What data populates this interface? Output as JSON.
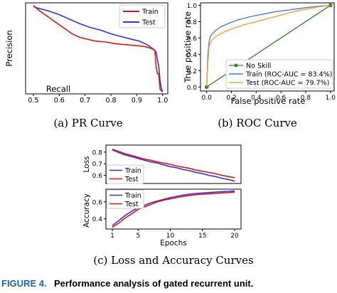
{
  "colors": {
    "train": "#3333dd",
    "test": "#e01515",
    "roc_train": "#4a7fd0",
    "roc_test": "#f2a13c",
    "no_skill": "#2a8a2a",
    "caption_label": "#1a63b8"
  },
  "captions": {
    "pr": "(a) PR Curve",
    "roc": "(b) ROC Curve",
    "loss_acc": "(c) Loss and Accuracy Curves"
  },
  "figure_caption": {
    "label": "FIGURE 4.",
    "text": "Performance analysis of gated recurrent unit."
  },
  "chart_data": [
    {
      "id": "pr",
      "type": "line",
      "title": "",
      "xlabel": "Recall",
      "ylabel": "Precision",
      "xlim": [
        0.47,
        1.02
      ],
      "ylim": [
        0.0,
        1.0
      ],
      "xticks": [
        "0.5",
        "0.6",
        "0.7",
        "0.8",
        "0.9",
        "1.0"
      ],
      "xtick_values": [
        0.5,
        0.6,
        0.7,
        0.8,
        0.9,
        1.0
      ],
      "yticks": [],
      "legend": "top-right",
      "series": [
        {
          "name": "Train",
          "color_key": "train",
          "x": [
            0.5,
            0.52,
            0.56,
            0.6,
            0.64,
            0.68,
            0.72,
            0.76,
            0.8,
            0.84,
            0.88,
            0.91,
            0.94,
            0.96,
            0.975,
            0.985,
            0.99,
            0.995,
            1.0
          ],
          "y": [
            0.96,
            0.94,
            0.91,
            0.87,
            0.82,
            0.77,
            0.73,
            0.7,
            0.66,
            0.63,
            0.6,
            0.58,
            0.54,
            0.5,
            0.46,
            0.3,
            0.15,
            0.06,
            0.02
          ]
        },
        {
          "name": "Test",
          "color_key": "test",
          "x": [
            0.5,
            0.52,
            0.55,
            0.58,
            0.61,
            0.63,
            0.65,
            0.68,
            0.71,
            0.74,
            0.78,
            0.82,
            0.86,
            0.9,
            0.93,
            0.955,
            0.97,
            0.975,
            0.98,
            0.985,
            0.99,
            1.0
          ],
          "y": [
            0.97,
            0.92,
            0.86,
            0.8,
            0.74,
            0.7,
            0.66,
            0.62,
            0.6,
            0.58,
            0.57,
            0.55,
            0.54,
            0.53,
            0.52,
            0.5,
            0.48,
            0.3,
            0.22,
            0.22,
            0.05,
            0.02
          ]
        }
      ]
    },
    {
      "id": "roc",
      "type": "line",
      "title": "",
      "xlabel": "False positive rate",
      "ylabel": "True positive rate",
      "xlim": [
        -0.05,
        1.03
      ],
      "ylim": [
        -0.05,
        1.03
      ],
      "xticks": [
        "0.0",
        "0.2",
        "0.4",
        "0.6",
        "0.8",
        "1.0"
      ],
      "xtick_values": [
        0.0,
        0.2,
        0.4,
        0.6,
        0.8,
        1.0
      ],
      "yticks": [
        "0.0",
        "0.2",
        "0.4",
        "0.6",
        "0.8",
        "1.0"
      ],
      "ytick_values": [
        0.0,
        0.2,
        0.4,
        0.6,
        0.8,
        1.0
      ],
      "legend": "bottom-right",
      "series": [
        {
          "name": "No Skill",
          "color_key": "no_skill",
          "markers": true,
          "x": [
            0.0,
            1.0
          ],
          "y": [
            0.0,
            1.0
          ]
        },
        {
          "name": "Train (ROC-AUC = 83.4%)",
          "color_key": "roc_train",
          "x": [
            0.0,
            0.01,
            0.02,
            0.03,
            0.05,
            0.08,
            0.12,
            0.18,
            0.25,
            0.35,
            0.45,
            0.55,
            0.65,
            0.75,
            0.85,
            0.92,
            1.0
          ],
          "y": [
            0.0,
            0.4,
            0.56,
            0.62,
            0.66,
            0.7,
            0.74,
            0.78,
            0.82,
            0.86,
            0.89,
            0.92,
            0.94,
            0.96,
            0.98,
            0.99,
            1.0
          ]
        },
        {
          "name": "Test (ROC-AUC = 79.7%)",
          "color_key": "roc_test",
          "x": [
            0.0,
            0.01,
            0.02,
            0.04,
            0.07,
            0.1,
            0.15,
            0.22,
            0.3,
            0.4,
            0.5,
            0.6,
            0.7,
            0.8,
            0.9,
            1.0
          ],
          "y": [
            0.0,
            0.3,
            0.5,
            0.57,
            0.61,
            0.64,
            0.68,
            0.72,
            0.76,
            0.8,
            0.84,
            0.88,
            0.92,
            0.95,
            0.98,
            1.0
          ]
        }
      ]
    },
    {
      "id": "loss",
      "type": "line",
      "title": "",
      "xlabel": "",
      "ylabel": "Loss",
      "xlim": [
        0,
        21
      ],
      "ylim": [
        0.53,
        0.86
      ],
      "yticks": [
        "0.8",
        "0.7",
        "0.6"
      ],
      "ytick_values": [
        0.8,
        0.7,
        0.6
      ],
      "legend": "top-left",
      "series": [
        {
          "name": "Train",
          "color_key": "train",
          "x": [
            1,
            2,
            3,
            4,
            5,
            6,
            7,
            8,
            9,
            10,
            11,
            12,
            13,
            14,
            15,
            16,
            17,
            18,
            19,
            20
          ],
          "y": [
            0.82,
            0.795,
            0.775,
            0.76,
            0.745,
            0.73,
            0.715,
            0.705,
            0.69,
            0.675,
            0.665,
            0.65,
            0.64,
            0.625,
            0.615,
            0.6,
            0.59,
            0.575,
            0.565,
            0.55
          ]
        },
        {
          "name": "Test",
          "color_key": "test",
          "x": [
            1,
            2,
            3,
            4,
            5,
            6,
            7,
            8,
            9,
            10,
            11,
            12,
            13,
            14,
            15,
            16,
            17,
            18,
            19,
            20
          ],
          "y": [
            0.825,
            0.805,
            0.785,
            0.77,
            0.755,
            0.74,
            0.73,
            0.715,
            0.705,
            0.695,
            0.68,
            0.67,
            0.66,
            0.645,
            0.635,
            0.625,
            0.615,
            0.6,
            0.59,
            0.58
          ]
        }
      ]
    },
    {
      "id": "accuracy",
      "type": "line",
      "title": "",
      "xlabel": "Epochs",
      "ylabel": "Accuracy",
      "xlim": [
        0,
        21
      ],
      "ylim": [
        0.28,
        0.75
      ],
      "xticks": [
        "1",
        "5",
        "10",
        "15",
        "20"
      ],
      "xtick_values": [
        1,
        5,
        10,
        15,
        20
      ],
      "yticks": [
        "0.6",
        "0.4"
      ],
      "ytick_values": [
        0.6,
        0.4
      ],
      "legend": "top-left",
      "series": [
        {
          "name": "Train",
          "color_key": "train",
          "x": [
            1,
            2,
            3,
            4,
            5,
            6,
            7,
            8,
            9,
            10,
            11,
            12,
            13,
            14,
            15,
            16,
            17,
            18,
            19,
            20
          ],
          "y": [
            0.32,
            0.38,
            0.44,
            0.49,
            0.53,
            0.56,
            0.59,
            0.61,
            0.63,
            0.65,
            0.665,
            0.68,
            0.69,
            0.7,
            0.705,
            0.71,
            0.715,
            0.72,
            0.725,
            0.73
          ]
        },
        {
          "name": "Test",
          "color_key": "test",
          "x": [
            1,
            2,
            3,
            4,
            5,
            6,
            7,
            8,
            9,
            10,
            11,
            12,
            13,
            14,
            15,
            16,
            17,
            18,
            19,
            20
          ],
          "y": [
            0.3,
            0.35,
            0.41,
            0.46,
            0.51,
            0.54,
            0.57,
            0.6,
            0.62,
            0.635,
            0.65,
            0.665,
            0.675,
            0.685,
            0.69,
            0.695,
            0.7,
            0.705,
            0.71,
            0.715
          ]
        }
      ]
    }
  ]
}
